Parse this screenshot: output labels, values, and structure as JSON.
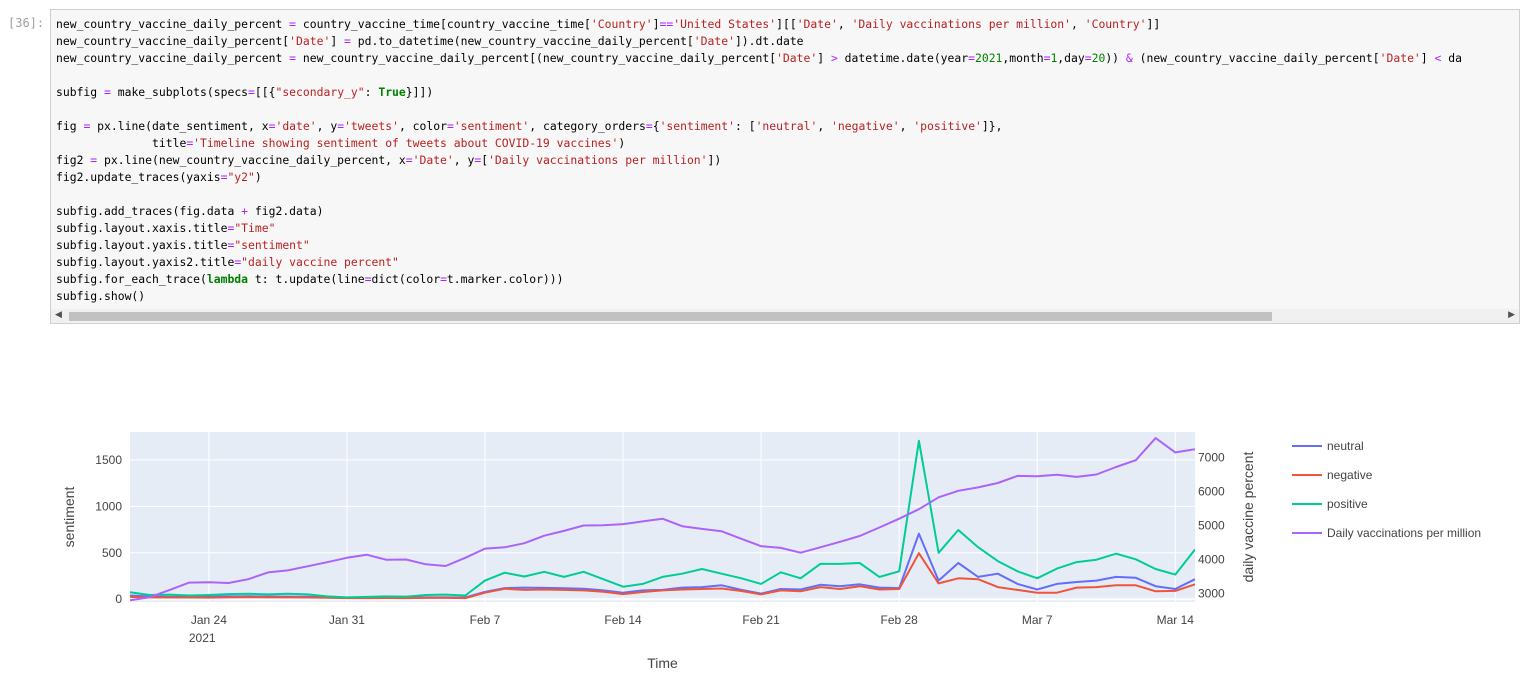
{
  "cell": {
    "prompt": "[36]:",
    "code_lines": [
      "new_country_vaccine_daily_percent = country_vaccine_time[country_vaccine_time['Country']=='United States'][['Date', 'Daily vaccinations per million', 'Country']]",
      "new_country_vaccine_daily_percent['Date'] = pd.to_datetime(new_country_vaccine_daily_percent['Date']).dt.date",
      "new_country_vaccine_daily_percent = new_country_vaccine_daily_percent[(new_country_vaccine_daily_percent['Date'] > datetime.date(year=2021,month=1,day=20)) & (new_country_vaccine_daily_percent['Date'] < da",
      "",
      "subfig = make_subplots(specs=[[{\"secondary_y\": True}]])",
      "",
      "fig = px.line(date_sentiment, x='date', y='tweets', color='sentiment', category_orders={'sentiment': ['neutral', 'negative', 'positive']},",
      "              title='Timeline showing sentiment of tweets about COVID-19 vaccines')",
      "fig2 = px.line(new_country_vaccine_daily_percent, x='Date', y=['Daily vaccinations per million'])",
      "fig2.update_traces(yaxis=\"y2\")",
      "",
      "subfig.add_traces(fig.data + fig2.data)",
      "subfig.layout.xaxis.title=\"Time\"",
      "subfig.layout.yaxis.title=\"sentiment\"",
      "subfig.layout.yaxis2.title=\"daily vaccine percent\"",
      "subfig.for_each_trace(lambda t: t.update(line=dict(color=t.marker.color)))",
      "subfig.show()"
    ],
    "scroll_left_icon": "triangle-left-icon",
    "scroll_right_icon": "triangle-right-icon"
  },
  "chart_data": {
    "type": "line",
    "title": "",
    "xlabel": "Time",
    "ylabel": "sentiment",
    "y2label": "daily vaccine percent",
    "x_start": "2021-01-20",
    "x_end": "2021-03-15",
    "x_ticks": [
      {
        "date": "2021-01-24",
        "label": "Jan 24",
        "sublabel": "2021"
      },
      {
        "date": "2021-01-31",
        "label": "Jan 31",
        "sublabel": ""
      },
      {
        "date": "2021-02-07",
        "label": "Feb 7",
        "sublabel": ""
      },
      {
        "date": "2021-02-14",
        "label": "Feb 14",
        "sublabel": ""
      },
      {
        "date": "2021-02-21",
        "label": "Feb 21",
        "sublabel": ""
      },
      {
        "date": "2021-02-28",
        "label": "Feb 28",
        "sublabel": ""
      },
      {
        "date": "2021-03-07",
        "label": "Mar 7",
        "sublabel": ""
      },
      {
        "date": "2021-03-14",
        "label": "Mar 14",
        "sublabel": ""
      }
    ],
    "ylim": [
      -30,
      1800
    ],
    "y_ticks": [
      0,
      500,
      1000,
      1500
    ],
    "y2lim": [
      2750,
      7750
    ],
    "y2_ticks": [
      3000,
      4000,
      5000,
      6000,
      7000
    ],
    "grid": true,
    "plot_bg": "#e5ecf6",
    "legend_position": "right",
    "series": [
      {
        "name": "neutral",
        "color": "#636efa",
        "axis": "y",
        "points": [
          [
            "2021-01-20",
            40
          ],
          [
            "2021-01-21",
            30
          ],
          [
            "2021-01-22",
            25
          ],
          [
            "2021-01-23",
            28
          ],
          [
            "2021-01-24",
            27
          ],
          [
            "2021-01-25",
            30
          ],
          [
            "2021-01-26",
            31
          ],
          [
            "2021-01-27",
            29
          ],
          [
            "2021-01-28",
            28
          ],
          [
            "2021-01-29",
            27
          ],
          [
            "2021-01-30",
            22
          ],
          [
            "2021-01-31",
            15
          ],
          [
            "2021-02-01",
            16
          ],
          [
            "2021-02-02",
            18
          ],
          [
            "2021-02-03",
            17
          ],
          [
            "2021-02-04",
            19
          ],
          [
            "2021-02-05",
            20
          ],
          [
            "2021-02-06",
            18
          ],
          [
            "2021-02-07",
            80
          ],
          [
            "2021-02-08",
            120
          ],
          [
            "2021-02-09",
            125
          ],
          [
            "2021-02-10",
            122
          ],
          [
            "2021-02-11",
            118
          ],
          [
            "2021-02-12",
            112
          ],
          [
            "2021-02-13",
            95
          ],
          [
            "2021-02-14",
            70
          ],
          [
            "2021-02-15",
            95
          ],
          [
            "2021-02-16",
            100
          ],
          [
            "2021-02-17",
            125
          ],
          [
            "2021-02-18",
            130
          ],
          [
            "2021-02-19",
            150
          ],
          [
            "2021-02-20",
            100
          ],
          [
            "2021-02-21",
            60
          ],
          [
            "2021-02-22",
            110
          ],
          [
            "2021-02-23",
            105
          ],
          [
            "2021-02-24",
            155
          ],
          [
            "2021-02-25",
            140
          ],
          [
            "2021-02-26",
            160
          ],
          [
            "2021-02-27",
            125
          ],
          [
            "2021-02-28",
            120
          ],
          [
            "2021-03-01",
            705
          ],
          [
            "2021-03-02",
            200
          ],
          [
            "2021-03-03",
            390
          ],
          [
            "2021-03-04",
            240
          ],
          [
            "2021-03-05",
            275
          ],
          [
            "2021-03-06",
            165
          ],
          [
            "2021-03-07",
            105
          ],
          [
            "2021-03-08",
            165
          ],
          [
            "2021-03-09",
            185
          ],
          [
            "2021-03-10",
            200
          ],
          [
            "2021-03-11",
            240
          ],
          [
            "2021-03-12",
            230
          ],
          [
            "2021-03-13",
            140
          ],
          [
            "2021-03-14",
            110
          ],
          [
            "2021-03-15",
            215
          ]
        ]
      },
      {
        "name": "negative",
        "color": "#ef553b",
        "axis": "y",
        "points": [
          [
            "2021-01-20",
            25
          ],
          [
            "2021-01-21",
            20
          ],
          [
            "2021-01-22",
            18
          ],
          [
            "2021-01-23",
            18
          ],
          [
            "2021-01-24",
            17
          ],
          [
            "2021-01-25",
            20
          ],
          [
            "2021-01-26",
            22
          ],
          [
            "2021-01-27",
            20
          ],
          [
            "2021-01-28",
            20
          ],
          [
            "2021-01-29",
            18
          ],
          [
            "2021-01-30",
            15
          ],
          [
            "2021-01-31",
            12
          ],
          [
            "2021-02-01",
            12
          ],
          [
            "2021-02-02",
            13
          ],
          [
            "2021-02-03",
            12
          ],
          [
            "2021-02-04",
            14
          ],
          [
            "2021-02-05",
            14
          ],
          [
            "2021-02-06",
            12
          ],
          [
            "2021-02-07",
            70
          ],
          [
            "2021-02-08",
            112
          ],
          [
            "2021-02-09",
            100
          ],
          [
            "2021-02-10",
            105
          ],
          [
            "2021-02-11",
            100
          ],
          [
            "2021-02-12",
            95
          ],
          [
            "2021-02-13",
            80
          ],
          [
            "2021-02-14",
            55
          ],
          [
            "2021-02-15",
            78
          ],
          [
            "2021-02-16",
            95
          ],
          [
            "2021-02-17",
            105
          ],
          [
            "2021-02-18",
            110
          ],
          [
            "2021-02-19",
            115
          ],
          [
            "2021-02-20",
            88
          ],
          [
            "2021-02-21",
            52
          ],
          [
            "2021-02-22",
            95
          ],
          [
            "2021-02-23",
            85
          ],
          [
            "2021-02-24",
            130
          ],
          [
            "2021-02-25",
            110
          ],
          [
            "2021-02-26",
            140
          ],
          [
            "2021-02-27",
            105
          ],
          [
            "2021-02-28",
            110
          ],
          [
            "2021-03-01",
            495
          ],
          [
            "2021-03-02",
            170
          ],
          [
            "2021-03-03",
            225
          ],
          [
            "2021-03-04",
            215
          ],
          [
            "2021-03-05",
            130
          ],
          [
            "2021-03-06",
            100
          ],
          [
            "2021-03-07",
            70
          ],
          [
            "2021-03-08",
            70
          ],
          [
            "2021-03-09",
            125
          ],
          [
            "2021-03-10",
            130
          ],
          [
            "2021-03-11",
            150
          ],
          [
            "2021-03-12",
            150
          ],
          [
            "2021-03-13",
            85
          ],
          [
            "2021-03-14",
            90
          ],
          [
            "2021-03-15",
            160
          ]
        ]
      },
      {
        "name": "positive",
        "color": "#00cc96",
        "axis": "y",
        "points": [
          [
            "2021-01-20",
            75
          ],
          [
            "2021-01-21",
            45
          ],
          [
            "2021-01-22",
            50
          ],
          [
            "2021-01-23",
            40
          ],
          [
            "2021-01-24",
            45
          ],
          [
            "2021-01-25",
            55
          ],
          [
            "2021-01-26",
            58
          ],
          [
            "2021-01-27",
            52
          ],
          [
            "2021-01-28",
            58
          ],
          [
            "2021-01-29",
            52
          ],
          [
            "2021-01-30",
            30
          ],
          [
            "2021-01-31",
            20
          ],
          [
            "2021-02-01",
            25
          ],
          [
            "2021-02-02",
            30
          ],
          [
            "2021-02-03",
            28
          ],
          [
            "2021-02-04",
            45
          ],
          [
            "2021-02-05",
            50
          ],
          [
            "2021-02-06",
            40
          ],
          [
            "2021-02-07",
            200
          ],
          [
            "2021-02-08",
            285
          ],
          [
            "2021-02-09",
            245
          ],
          [
            "2021-02-10",
            295
          ],
          [
            "2021-02-11",
            240
          ],
          [
            "2021-02-12",
            295
          ],
          [
            "2021-02-13",
            215
          ],
          [
            "2021-02-14",
            135
          ],
          [
            "2021-02-15",
            165
          ],
          [
            "2021-02-16",
            240
          ],
          [
            "2021-02-17",
            275
          ],
          [
            "2021-02-18",
            325
          ],
          [
            "2021-02-19",
            275
          ],
          [
            "2021-02-20",
            225
          ],
          [
            "2021-02-21",
            165
          ],
          [
            "2021-02-22",
            290
          ],
          [
            "2021-02-23",
            225
          ],
          [
            "2021-02-24",
            380
          ],
          [
            "2021-02-25",
            380
          ],
          [
            "2021-02-26",
            390
          ],
          [
            "2021-02-27",
            240
          ],
          [
            "2021-02-28",
            300
          ],
          [
            "2021-03-01",
            1705
          ],
          [
            "2021-03-02",
            500
          ],
          [
            "2021-03-03",
            745
          ],
          [
            "2021-03-04",
            560
          ],
          [
            "2021-03-05",
            410
          ],
          [
            "2021-03-06",
            300
          ],
          [
            "2021-03-07",
            225
          ],
          [
            "2021-03-08",
            330
          ],
          [
            "2021-03-09",
            400
          ],
          [
            "2021-03-10",
            425
          ],
          [
            "2021-03-11",
            490
          ],
          [
            "2021-03-12",
            430
          ],
          [
            "2021-03-13",
            325
          ],
          [
            "2021-03-14",
            265
          ],
          [
            "2021-03-15",
            535
          ]
        ]
      },
      {
        "name": "Daily vaccinations per million",
        "color": "#ab63fa",
        "axis": "y2",
        "points": [
          [
            "2021-01-20",
            2800
          ],
          [
            "2021-01-21",
            2890
          ],
          [
            "2021-01-22",
            3100
          ],
          [
            "2021-01-23",
            3320
          ],
          [
            "2021-01-24",
            3330
          ],
          [
            "2021-01-25",
            3310
          ],
          [
            "2021-01-26",
            3420
          ],
          [
            "2021-01-27",
            3620
          ],
          [
            "2021-01-28",
            3680
          ],
          [
            "2021-01-29",
            3800
          ],
          [
            "2021-01-30",
            3920
          ],
          [
            "2021-01-31",
            4050
          ],
          [
            "2021-02-01",
            4140
          ],
          [
            "2021-02-02",
            3990
          ],
          [
            "2021-02-03",
            4000
          ],
          [
            "2021-02-04",
            3860
          ],
          [
            "2021-02-05",
            3810
          ],
          [
            "2021-02-06",
            4050
          ],
          [
            "2021-02-07",
            4320
          ],
          [
            "2021-02-08",
            4360
          ],
          [
            "2021-02-09",
            4480
          ],
          [
            "2021-02-10",
            4700
          ],
          [
            "2021-02-11",
            4840
          ],
          [
            "2021-02-12",
            5000
          ],
          [
            "2021-02-13",
            5010
          ],
          [
            "2021-02-14",
            5040
          ],
          [
            "2021-02-15",
            5120
          ],
          [
            "2021-02-16",
            5200
          ],
          [
            "2021-02-17",
            4980
          ],
          [
            "2021-02-18",
            4900
          ],
          [
            "2021-02-19",
            4830
          ],
          [
            "2021-02-20",
            4610
          ],
          [
            "2021-02-21",
            4390
          ],
          [
            "2021-02-22",
            4340
          ],
          [
            "2021-02-23",
            4200
          ],
          [
            "2021-02-24",
            4360
          ],
          [
            "2021-02-25",
            4520
          ],
          [
            "2021-02-26",
            4690
          ],
          [
            "2021-02-27",
            4940
          ],
          [
            "2021-02-28",
            5200
          ],
          [
            "2021-03-01",
            5480
          ],
          [
            "2021-03-02",
            5830
          ],
          [
            "2021-03-03",
            6020
          ],
          [
            "2021-03-04",
            6120
          ],
          [
            "2021-03-05",
            6250
          ],
          [
            "2021-03-06",
            6460
          ],
          [
            "2021-03-07",
            6450
          ],
          [
            "2021-03-08",
            6490
          ],
          [
            "2021-03-09",
            6430
          ],
          [
            "2021-03-10",
            6500
          ],
          [
            "2021-03-11",
            6720
          ],
          [
            "2021-03-12",
            6920
          ],
          [
            "2021-03-13",
            7570
          ],
          [
            "2021-03-14",
            7150
          ],
          [
            "2021-03-15",
            7240
          ]
        ]
      }
    ]
  }
}
